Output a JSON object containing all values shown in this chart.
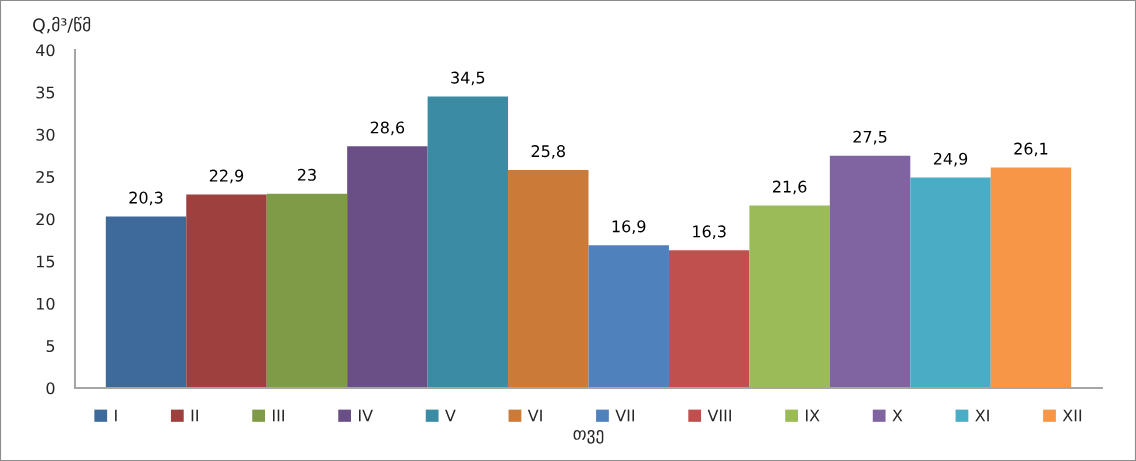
{
  "chart_data": {
    "type": "bar",
    "xlabel": "თვე",
    "ylabel": "Q,მ³/წმ",
    "categories": [
      null
    ],
    "series": [
      {
        "name": "I",
        "color": "#3e6a9b",
        "values": [
          20.3
        ],
        "value_labels": [
          "20,3"
        ]
      },
      {
        "name": "II",
        "color": "#9e403d",
        "values": [
          22.9
        ],
        "value_labels": [
          "22,9"
        ]
      },
      {
        "name": "III",
        "color": "#7f9b48",
        "values": [
          23
        ],
        "value_labels": [
          "23"
        ]
      },
      {
        "name": "IV",
        "color": "#6a4f86",
        "values": [
          28.6
        ],
        "value_labels": [
          "28,6"
        ]
      },
      {
        "name": "V",
        "color": "#3a8ba3",
        "values": [
          34.5
        ],
        "value_labels": [
          "34,5"
        ]
      },
      {
        "name": "VI",
        "color": "#cb7a38",
        "values": [
          25.8
        ],
        "value_labels": [
          "25,8"
        ]
      },
      {
        "name": "VII",
        "color": "#4f81bd",
        "values": [
          16.9
        ],
        "value_labels": [
          "16,9"
        ]
      },
      {
        "name": "VIII",
        "color": "#c0504d",
        "values": [
          16.3
        ],
        "value_labels": [
          "16,3"
        ]
      },
      {
        "name": "IX",
        "color": "#9bbb59",
        "values": [
          21.6
        ],
        "value_labels": [
          "21,6"
        ]
      },
      {
        "name": "X",
        "color": "#8064a2",
        "values": [
          27.5
        ],
        "value_labels": [
          "27,5"
        ]
      },
      {
        "name": "XI",
        "color": "#4bacc6",
        "values": [
          24.9
        ],
        "value_labels": [
          "24,9"
        ]
      },
      {
        "name": "XII",
        "color": "#f79646",
        "values": [
          26.1
        ],
        "value_labels": [
          "26,1"
        ]
      }
    ],
    "ylim": [
      0,
      40
    ],
    "yticks": [
      0,
      5,
      10,
      15,
      20,
      25,
      30,
      35,
      40
    ],
    "legend": "bottom"
  }
}
